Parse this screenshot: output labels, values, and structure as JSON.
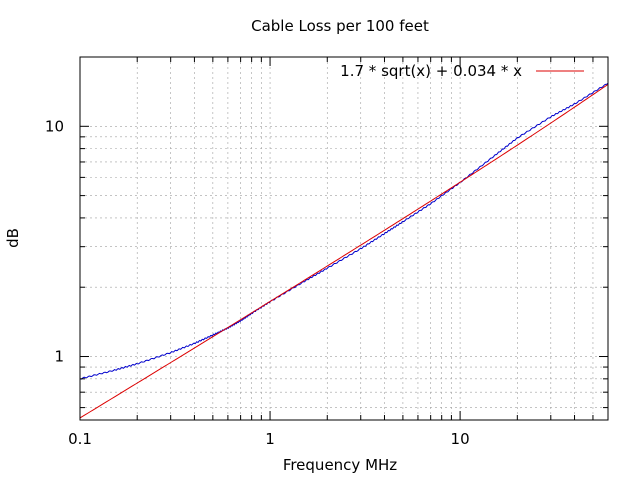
{
  "chart_data": {
    "type": "line",
    "title": "Cable Loss per 100 feet",
    "xlabel": "Frequency MHz",
    "ylabel": "dB",
    "x_scale": "log",
    "y_scale": "log",
    "xlim": [
      0.1,
      60
    ],
    "ylim": [
      0.53,
      20
    ],
    "x_ticks": [
      {
        "value": 0.1,
        "label": "0.1"
      },
      {
        "value": 1,
        "label": "1"
      },
      {
        "value": 10,
        "label": "10"
      }
    ],
    "y_ticks": [
      {
        "value": 1,
        "label": "1"
      },
      {
        "value": 10,
        "label": "10"
      }
    ],
    "grid": true,
    "legend_position": "top-right",
    "series": [
      {
        "color": "#0000cc",
        "x": [
          0.1,
          0.15,
          0.2,
          0.3,
          0.4,
          0.5,
          0.6,
          0.7,
          0.8,
          1,
          1.5,
          2,
          3,
          4,
          5,
          7,
          10,
          15,
          20,
          30,
          40,
          60
        ],
        "y": [
          0.8,
          0.87,
          0.93,
          1.04,
          1.14,
          1.24,
          1.33,
          1.43,
          1.54,
          1.73,
          2.11,
          2.42,
          2.94,
          3.42,
          3.85,
          4.61,
          5.7,
          7.4,
          8.9,
          11.0,
          12.5,
          15.4
        ]
      },
      {
        "name": "1.7 * sqrt(x) + 0.034 * x",
        "color": "#dd0000",
        "function": {
          "a": 1.7,
          "b": 0.034
        }
      }
    ]
  }
}
